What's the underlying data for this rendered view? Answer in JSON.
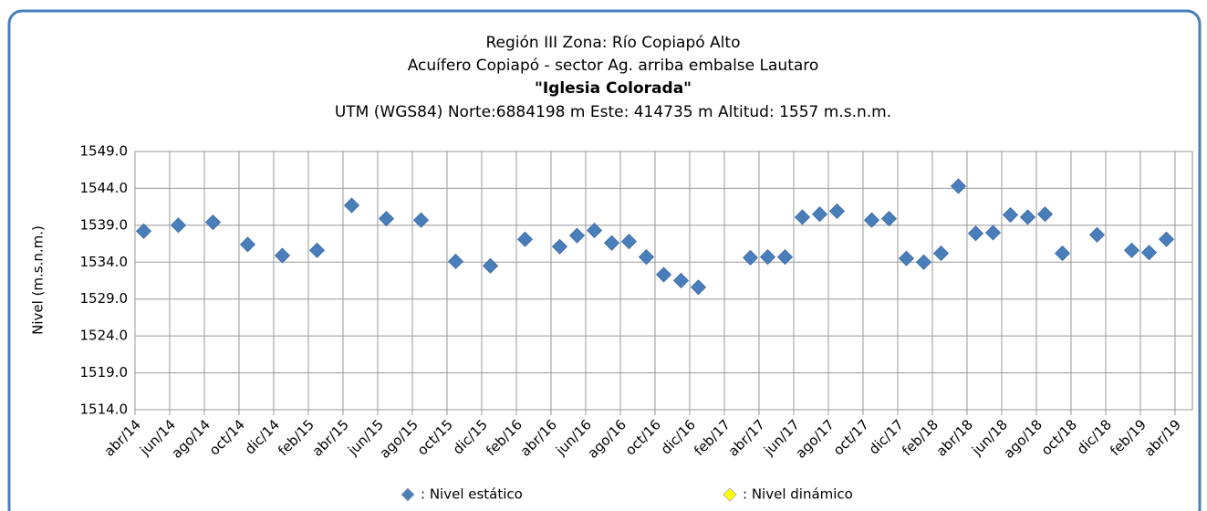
{
  "chart_data": {
    "type": "scatter",
    "title": "Región III Zona: Río Copiapó Alto",
    "subtitle": "Acuífero Copiapó - sector Ag. arriba embalse Lautaro",
    "station": "\"Iglesia Colorada\"",
    "location": "UTM (WGS84) Norte:6884198 m Este: 414735 m Altitud: 1557 m.s.n.m.",
    "ylabel": "Nivel (m.s.n.m.)",
    "categories": [
      "abr/14",
      null,
      "jun/14",
      null,
      "ago/14",
      null,
      "oct/14",
      null,
      "dic/14",
      null,
      "feb/15",
      null,
      "abr/15",
      null,
      "jun/15",
      null,
      "ago/15",
      null,
      "oct/15",
      null,
      "dic/15",
      null,
      "feb/16",
      null,
      "abr/16",
      null,
      "jun/16",
      null,
      "ago/16",
      null,
      "oct/16",
      null,
      "dic/16",
      null,
      "feb/17",
      null,
      "abr/17",
      null,
      "jun/17",
      null,
      "ago/17",
      null,
      "oct/17",
      null,
      "dic/17",
      null,
      "feb/18",
      null,
      "abr/18",
      null,
      "jun/18",
      null,
      "ago/18",
      null,
      "oct/18",
      null,
      "dic/18",
      null,
      "feb/19",
      null,
      "abr/19"
    ],
    "series": [
      {
        "name": ": Nivel estático",
        "color": "#4a7ebb",
        "values": [
          1538.2,
          null,
          1539.0,
          null,
          1539.4,
          null,
          1536.4,
          null,
          1534.9,
          null,
          1535.6,
          null,
          1541.7,
          null,
          1539.9,
          null,
          1539.7,
          null,
          1534.1,
          null,
          1533.5,
          null,
          1537.1,
          null,
          1536.1,
          1537.6,
          1538.3,
          1536.6,
          1536.8,
          1534.7,
          1532.3,
          1531.5,
          1530.6,
          null,
          null,
          1534.6,
          1534.7,
          1534.7,
          1540.1,
          1540.5,
          1540.9,
          null,
          1539.7,
          1539.9,
          1534.5,
          1534.0,
          1535.2,
          1544.3,
          1537.9,
          1538.0,
          1540.4,
          1540.1,
          1540.5,
          1535.2,
          null,
          1537.7,
          null,
          1535.6,
          1535.3,
          1537.1,
          null
        ]
      },
      {
        "name": ": Nivel dinámico",
        "color": "#ffff00",
        "values": [
          null,
          null,
          null,
          null,
          null,
          null,
          null,
          null,
          null,
          null,
          null,
          null,
          null,
          null,
          null,
          null,
          null,
          null,
          null,
          null,
          null,
          null,
          null,
          null,
          null,
          null,
          null,
          null,
          null,
          null,
          null,
          null,
          null,
          null,
          null,
          null,
          null,
          null,
          null,
          null,
          null,
          null,
          null,
          null,
          null,
          null,
          null,
          null,
          null,
          null,
          null,
          null,
          null,
          null,
          null,
          null,
          null,
          null,
          null,
          null,
          null
        ]
      }
    ],
    "ylim": [
      1514,
      1549
    ],
    "yticks": [
      {
        "value": 1514,
        "label": "1514.0"
      },
      {
        "value": 1519,
        "label": "1519.0"
      },
      {
        "value": 1524,
        "label": "1524.0"
      },
      {
        "value": 1529,
        "label": "1529.0"
      },
      {
        "value": 1534,
        "label": "1534.0"
      },
      {
        "value": 1539,
        "label": "1539.0"
      },
      {
        "value": 1544,
        "label": "1544.0"
      },
      {
        "value": 1549,
        "label": "1549.0"
      }
    ],
    "grid": true
  }
}
